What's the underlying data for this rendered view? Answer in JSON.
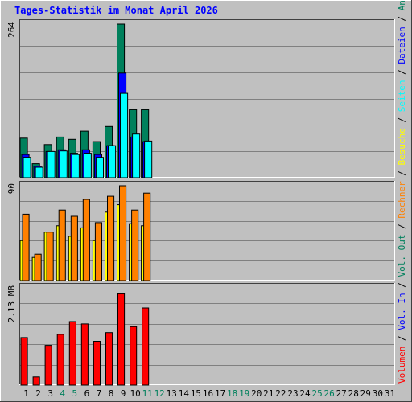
{
  "title": "Tages-Statistik im Monat April 2026",
  "colors": {
    "background": "#c0c0c0",
    "title": "#0000ff",
    "grid": "#808080",
    "hits": "#00805c",
    "files": "#0000ff",
    "pages": "#00ffff",
    "visits": "#ffff00",
    "sites": "#ff8000",
    "kbytes": "#ff0000",
    "kbytes_out": "#ff0000",
    "weekend_label": "#00805c",
    "weekday_label": "#000000"
  },
  "chart_data": [
    {
      "type": "bar",
      "panel": "top",
      "ymax_label": "264",
      "ylim": [
        0,
        264
      ],
      "x": [
        1,
        2,
        3,
        4,
        5,
        6,
        7,
        8,
        9,
        10,
        11,
        12,
        13,
        14,
        15,
        16,
        17,
        18,
        19,
        20,
        21,
        22,
        23,
        24,
        25,
        26,
        27,
        28,
        29,
        30,
        31
      ],
      "series": [
        {
          "name": "Anfragen",
          "color_key": "hits",
          "values": [
            68,
            24,
            57,
            70,
            66,
            80,
            62,
            88,
            264,
            117,
            117,
            0,
            0,
            0,
            0,
            0,
            0,
            0,
            0,
            0,
            0,
            0,
            0,
            0,
            0,
            0,
            0,
            0,
            0,
            0,
            0
          ]
        },
        {
          "name": "Dateien",
          "color_key": "files",
          "values": [
            40,
            20,
            45,
            48,
            42,
            48,
            40,
            55,
            180,
            70,
            62,
            0,
            0,
            0,
            0,
            0,
            0,
            0,
            0,
            0,
            0,
            0,
            0,
            0,
            0,
            0,
            0,
            0,
            0,
            0,
            0
          ]
        },
        {
          "name": "Seiten",
          "color_key": "pages",
          "values": [
            35,
            18,
            45,
            46,
            40,
            42,
            35,
            55,
            145,
            75,
            63,
            0,
            0,
            0,
            0,
            0,
            0,
            0,
            0,
            0,
            0,
            0,
            0,
            0,
            0,
            0,
            0,
            0,
            0,
            0,
            0
          ]
        }
      ]
    },
    {
      "type": "bar",
      "panel": "middle",
      "ymax_label": "90",
      "ylim": [
        0,
        90
      ],
      "x": [
        1,
        2,
        3,
        4,
        5,
        6,
        7,
        8,
        9,
        10,
        11,
        12,
        13,
        14,
        15,
        16,
        17,
        18,
        19,
        20,
        21,
        22,
        23,
        24,
        25,
        26,
        27,
        28,
        29,
        30,
        31
      ],
      "series": [
        {
          "name": "Besuche",
          "color_key": "visits",
          "values": [
            38,
            22,
            46,
            52,
            42,
            50,
            38,
            65,
            72,
            54,
            52,
            0,
            0,
            0,
            0,
            0,
            0,
            0,
            0,
            0,
            0,
            0,
            0,
            0,
            0,
            0,
            0,
            0,
            0,
            0,
            0
          ]
        },
        {
          "name": "Rechner",
          "color_key": "sites",
          "values": [
            63,
            25,
            46,
            67,
            61,
            77,
            55,
            80,
            90,
            67,
            83,
            0,
            0,
            0,
            0,
            0,
            0,
            0,
            0,
            0,
            0,
            0,
            0,
            0,
            0,
            0,
            0,
            0,
            0,
            0,
            0
          ]
        }
      ]
    },
    {
      "type": "bar",
      "panel": "bottom",
      "ymax_label": "2.13 MB",
      "ylim": [
        0,
        2.13
      ],
      "x": [
        1,
        2,
        3,
        4,
        5,
        6,
        7,
        8,
        9,
        10,
        11,
        12,
        13,
        14,
        15,
        16,
        17,
        18,
        19,
        20,
        21,
        22,
        23,
        24,
        25,
        26,
        27,
        28,
        29,
        30,
        31
      ],
      "series": [
        {
          "name": "Vol. In",
          "color_key": "kbytes",
          "values": [
            1.04,
            0.18,
            0.87,
            1.11,
            1.39,
            1.34,
            0.96,
            1.15,
            2.0,
            1.28,
            1.69,
            0,
            0,
            0,
            0,
            0,
            0,
            0,
            0,
            0,
            0,
            0,
            0,
            0,
            0,
            0,
            0,
            0,
            0,
            0,
            0
          ]
        }
      ]
    }
  ],
  "x_labels": [
    {
      "text": "1",
      "weekend": false
    },
    {
      "text": "2",
      "weekend": false
    },
    {
      "text": "3",
      "weekend": false
    },
    {
      "text": "4",
      "weekend": true
    },
    {
      "text": "5",
      "weekend": true
    },
    {
      "text": "6",
      "weekend": false
    },
    {
      "text": "7",
      "weekend": false
    },
    {
      "text": "8",
      "weekend": false
    },
    {
      "text": "9",
      "weekend": false
    },
    {
      "text": "10",
      "weekend": false
    },
    {
      "text": "11",
      "weekend": true
    },
    {
      "text": "12",
      "weekend": true
    },
    {
      "text": "13",
      "weekend": false
    },
    {
      "text": "14",
      "weekend": false
    },
    {
      "text": "15",
      "weekend": false
    },
    {
      "text": "16",
      "weekend": false
    },
    {
      "text": "17",
      "weekend": false
    },
    {
      "text": "18",
      "weekend": true
    },
    {
      "text": "19",
      "weekend": true
    },
    {
      "text": "20",
      "weekend": false
    },
    {
      "text": "21",
      "weekend": false
    },
    {
      "text": "22",
      "weekend": false
    },
    {
      "text": "23",
      "weekend": false
    },
    {
      "text": "24",
      "weekend": false
    },
    {
      "text": "25",
      "weekend": true
    },
    {
      "text": "26",
      "weekend": true
    },
    {
      "text": "27",
      "weekend": false
    },
    {
      "text": "28",
      "weekend": false
    },
    {
      "text": "29",
      "weekend": false
    },
    {
      "text": "30",
      "weekend": false
    },
    {
      "text": "31",
      "weekend": false
    }
  ],
  "legend_right": [
    {
      "text": "Volumen",
      "color_key": "kbytes"
    },
    {
      "text": " / ",
      "color_key": "weekday_label"
    },
    {
      "text": "Vol. In",
      "color_key": "files"
    },
    {
      "text": " / ",
      "color_key": "weekday_label"
    },
    {
      "text": "Vol. Out",
      "color_key": "hits"
    },
    {
      "text": " / ",
      "color_key": "weekday_label"
    },
    {
      "text": "Rechner",
      "color_key": "sites"
    },
    {
      "text": " / ",
      "color_key": "weekday_label"
    },
    {
      "text": "Besuche",
      "color_key": "visits"
    },
    {
      "text": " / ",
      "color_key": "weekday_label"
    },
    {
      "text": "Seiten",
      "color_key": "pages"
    },
    {
      "text": " / ",
      "color_key": "weekday_label"
    },
    {
      "text": "Dateien",
      "color_key": "files"
    },
    {
      "text": " / ",
      "color_key": "weekday_label"
    },
    {
      "text": "Anfragen",
      "color_key": "hits"
    }
  ]
}
